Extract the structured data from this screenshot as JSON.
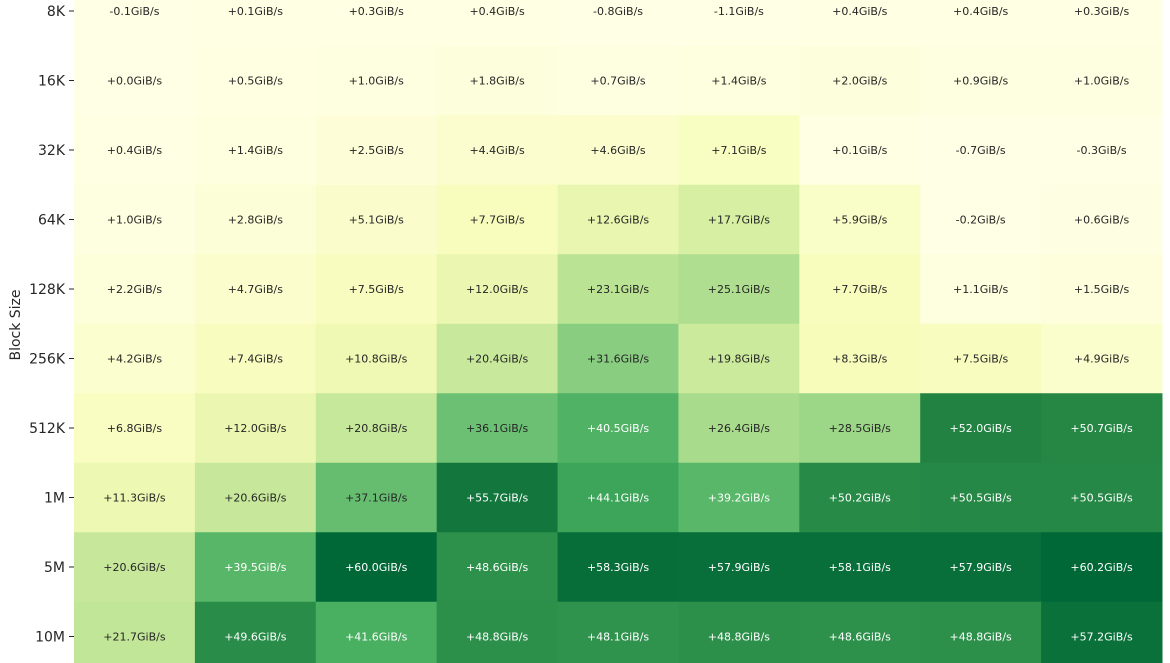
{
  "chart_data": {
    "type": "heatmap",
    "title": "",
    "xlabel": "",
    "ylabel": "Block Size",
    "y_categories": [
      "8K",
      "16K",
      "32K",
      "64K",
      "128K",
      "256K",
      "512K",
      "1M",
      "5M",
      "10M"
    ],
    "columns": 9,
    "unit": "GiB/s",
    "color_scale": {
      "name": "YlGn",
      "min": 0,
      "max": 60,
      "stops": [
        "#ffffe5",
        "#f7fcb9",
        "#d9f0a3",
        "#addd8e",
        "#78c679",
        "#41ab5d",
        "#238443",
        "#006837"
      ],
      "low_text_color": "#262626",
      "high_text_color": "#ffffff"
    },
    "values": [
      [
        -0.1,
        0.1,
        0.3,
        0.4,
        -0.8,
        -1.1,
        0.4,
        0.4,
        0.3
      ],
      [
        0.0,
        0.5,
        1.0,
        1.8,
        0.7,
        1.4,
        2.0,
        0.9,
        1.0
      ],
      [
        0.4,
        1.4,
        2.5,
        4.4,
        4.6,
        7.1,
        0.1,
        -0.7,
        -0.3
      ],
      [
        1.0,
        2.8,
        5.1,
        7.7,
        12.6,
        17.7,
        5.9,
        -0.2,
        0.6
      ],
      [
        2.2,
        4.7,
        7.5,
        12.0,
        23.1,
        25.1,
        7.7,
        1.1,
        1.5
      ],
      [
        4.2,
        7.4,
        10.8,
        20.4,
        31.6,
        19.8,
        8.3,
        7.5,
        4.9
      ],
      [
        6.8,
        12.0,
        20.8,
        36.1,
        40.5,
        26.4,
        28.5,
        52.0,
        50.7
      ],
      [
        11.3,
        20.6,
        37.1,
        55.7,
        44.1,
        39.2,
        50.2,
        50.5,
        50.5
      ],
      [
        20.6,
        39.5,
        60.0,
        48.6,
        58.3,
        57.9,
        58.1,
        57.9,
        60.2
      ],
      [
        21.7,
        49.6,
        41.6,
        48.8,
        48.1,
        48.8,
        48.6,
        48.8,
        57.2
      ]
    ],
    "labels": [
      [
        "-0.1GiB/s",
        "+0.1GiB/s",
        "+0.3GiB/s",
        "+0.4GiB/s",
        "-0.8GiB/s",
        "-1.1GiB/s",
        "+0.4GiB/s",
        "+0.4GiB/s",
        "+0.3GiB/s"
      ],
      [
        "+0.0GiB/s",
        "+0.5GiB/s",
        "+1.0GiB/s",
        "+1.8GiB/s",
        "+0.7GiB/s",
        "+1.4GiB/s",
        "+2.0GiB/s",
        "+0.9GiB/s",
        "+1.0GiB/s"
      ],
      [
        "+0.4GiB/s",
        "+1.4GiB/s",
        "+2.5GiB/s",
        "+4.4GiB/s",
        "+4.6GiB/s",
        "+7.1GiB/s",
        "+0.1GiB/s",
        "-0.7GiB/s",
        "-0.3GiB/s"
      ],
      [
        "+1.0GiB/s",
        "+2.8GiB/s",
        "+5.1GiB/s",
        "+7.7GiB/s",
        "+12.6GiB/s",
        "+17.7GiB/s",
        "+5.9GiB/s",
        "-0.2GiB/s",
        "+0.6GiB/s"
      ],
      [
        "+2.2GiB/s",
        "+4.7GiB/s",
        "+7.5GiB/s",
        "+12.0GiB/s",
        "+23.1GiB/s",
        "+25.1GiB/s",
        "+7.7GiB/s",
        "+1.1GiB/s",
        "+1.5GiB/s"
      ],
      [
        "+4.2GiB/s",
        "+7.4GiB/s",
        "+10.8GiB/s",
        "+20.4GiB/s",
        "+31.6GiB/s",
        "+19.8GiB/s",
        "+8.3GiB/s",
        "+7.5GiB/s",
        "+4.9GiB/s"
      ],
      [
        "+6.8GiB/s",
        "+12.0GiB/s",
        "+20.8GiB/s",
        "+36.1GiB/s",
        "+40.5GiB/s",
        "+26.4GiB/s",
        "+28.5GiB/s",
        "+52.0GiB/s",
        "+50.7GiB/s"
      ],
      [
        "+11.3GiB/s",
        "+20.6GiB/s",
        "+37.1GiB/s",
        "+55.7GiB/s",
        "+44.1GiB/s",
        "+39.2GiB/s",
        "+50.2GiB/s",
        "+50.5GiB/s",
        "+50.5GiB/s"
      ],
      [
        "+20.6GiB/s",
        "+39.5GiB/s",
        "+60.0GiB/s",
        "+48.6GiB/s",
        "+58.3GiB/s",
        "+57.9GiB/s",
        "+58.1GiB/s",
        "+57.9GiB/s",
        "+60.2GiB/s"
      ],
      [
        "+21.7GiB/s",
        "+49.6GiB/s",
        "+41.6GiB/s",
        "+48.8GiB/s",
        "+48.1GiB/s",
        "+48.8GiB/s",
        "+48.6GiB/s",
        "+48.8GiB/s",
        "+57.2GiB/s"
      ]
    ]
  }
}
